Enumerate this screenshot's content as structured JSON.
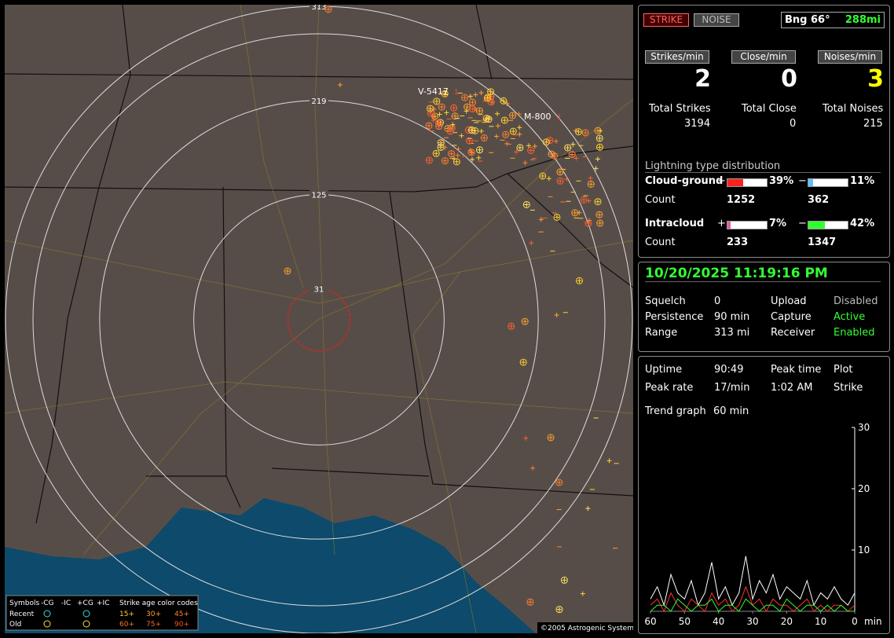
{
  "map": {
    "range_rings": [
      313,
      219,
      125,
      31
    ],
    "stations": [
      {
        "name": "V-5417",
        "count": 1
      },
      {
        "name": "M-800",
        "count": 1
      }
    ],
    "legend": {
      "symbols": "Symbols",
      "headers": [
        "-CG",
        "-IC",
        "+CG",
        "+IC"
      ],
      "age_title": "Strike age color codes",
      "rows": [
        {
          "label": "Recent",
          "ages": [
            "15+",
            "30+",
            "45+"
          ]
        },
        {
          "label": "Old",
          "ages": [
            "60+",
            "75+",
            "90+"
          ]
        }
      ]
    },
    "copyright": "©2005 Astrogenic Systems"
  },
  "status": {
    "buttons": [
      "STRIKE",
      "NOISE"
    ],
    "bearing": "Bng 66°",
    "distance": "288mi"
  },
  "rates": {
    "labels": [
      "Strikes/min",
      "Close/min",
      "Noises/min"
    ],
    "values": [
      2,
      0,
      3
    ],
    "total_labels": [
      "Total Strikes",
      "Total Close",
      "Total Noises"
    ],
    "totals": [
      3194,
      0,
      215
    ]
  },
  "distribution": {
    "title": "Lightning type distribution",
    "count_label": "Count",
    "rows": [
      {
        "name": "Cloud-ground",
        "pos_sign": "+",
        "pos": {
          "value": 39,
          "label": "39%"
        },
        "pos_count": 1252,
        "neg_sign": "−",
        "neg": {
          "value": 11,
          "label": "11%"
        },
        "neg_count": 362
      },
      {
        "name": "Intracloud",
        "pos_sign": "+",
        "pos": {
          "value": 7,
          "label": "7%"
        },
        "pos_count": 233,
        "neg_sign": "−",
        "neg": {
          "value": 42,
          "label": "42%"
        },
        "neg_count": 1347
      }
    ]
  },
  "clock": "10/20/2025 11:19:16 PM",
  "settings": [
    [
      "Squelch",
      "0",
      "Upload",
      "Disabled"
    ],
    [
      "Persistence",
      "90 min",
      "Capture",
      "Active"
    ],
    [
      "Range",
      "313 mi",
      "Receiver",
      "Enabled"
    ]
  ],
  "stats": [
    [
      "Uptime",
      "90:49",
      "Peak time",
      "Plot"
    ],
    [
      "Peak rate",
      "17/min",
      "1:02 AM",
      "Strike"
    ]
  ],
  "trend": {
    "label": "Trend graph",
    "period": "60 min"
  },
  "trend_graph": {
    "type": "line",
    "x": [
      60,
      58,
      56,
      54,
      52,
      50,
      48,
      46,
      44,
      42,
      40,
      38,
      36,
      34,
      32,
      30,
      28,
      26,
      24,
      22,
      20,
      18,
      16,
      14,
      12,
      10,
      8,
      6,
      4,
      2,
      0
    ],
    "xlim": [
      60,
      0
    ],
    "xticks": [
      60,
      50,
      40,
      30,
      20,
      10,
      0
    ],
    "x_unit": "min",
    "ylim": [
      0,
      30
    ],
    "yticks": [
      10,
      20,
      30
    ],
    "series": [
      {
        "color": "#ffffff",
        "values": [
          2,
          4,
          1,
          6,
          3,
          2,
          5,
          1,
          3,
          8,
          2,
          4,
          1,
          3,
          9,
          2,
          5,
          3,
          6,
          2,
          4,
          3,
          2,
          5,
          1,
          3,
          2,
          4,
          2,
          1,
          3
        ]
      },
      {
        "color": "#ff3030",
        "values": [
          1,
          2,
          0,
          3,
          1,
          0,
          2,
          1,
          0,
          3,
          1,
          2,
          0,
          1,
          4,
          1,
          2,
          0,
          2,
          1,
          1,
          0,
          1,
          2,
          0,
          1,
          0,
          1,
          1,
          0,
          1
        ]
      },
      {
        "color": "#30ff30",
        "values": [
          0,
          1,
          1,
          0,
          2,
          1,
          0,
          1,
          1,
          2,
          0,
          1,
          1,
          0,
          2,
          1,
          0,
          1,
          1,
          0,
          2,
          1,
          0,
          1,
          1,
          0,
          1,
          0,
          1,
          0,
          0
        ]
      }
    ]
  }
}
